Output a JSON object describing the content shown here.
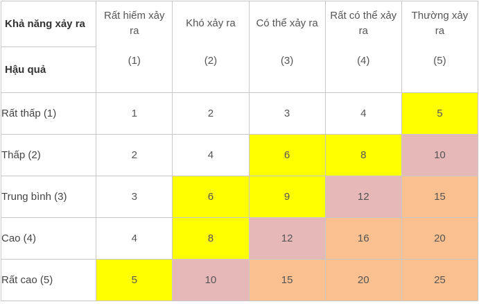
{
  "header": {
    "corner_top": "Khả năng xảy ra",
    "corner_bottom": "Hậu quả",
    "columns": [
      {
        "label": "Rất hiếm xảy ra",
        "num": "(1)"
      },
      {
        "label": "Khó xảy ra",
        "num": "(2)"
      },
      {
        "label": "Có thể xảy ra",
        "num": "(3)"
      },
      {
        "label": "Rất có thể xảy ra",
        "num": "(4)"
      },
      {
        "label": "Thường xảy ra",
        "num": "(5)"
      }
    ]
  },
  "rows": [
    {
      "label": "Rất thấp (1)",
      "values": [
        "1",
        "2",
        "3",
        "4",
        "5"
      ]
    },
    {
      "label": "Thấp (2)",
      "values": [
        "2",
        "4",
        "6",
        "8",
        "10"
      ]
    },
    {
      "label": "Trung bình (3)",
      "values": [
        "3",
        "6",
        "9",
        "12",
        "15"
      ]
    },
    {
      "label": "Cao (4)",
      "values": [
        "4",
        "8",
        "12",
        "16",
        "20"
      ]
    },
    {
      "label": "Rất cao (5)",
      "values": [
        "5",
        "10",
        "15",
        "20",
        "25"
      ]
    }
  ],
  "colors": {
    "white": "#ffffff",
    "yellow": "#ffff00",
    "pink": "#e6b8b7",
    "orange": "#fac090",
    "border": "#c8c8c8"
  }
}
